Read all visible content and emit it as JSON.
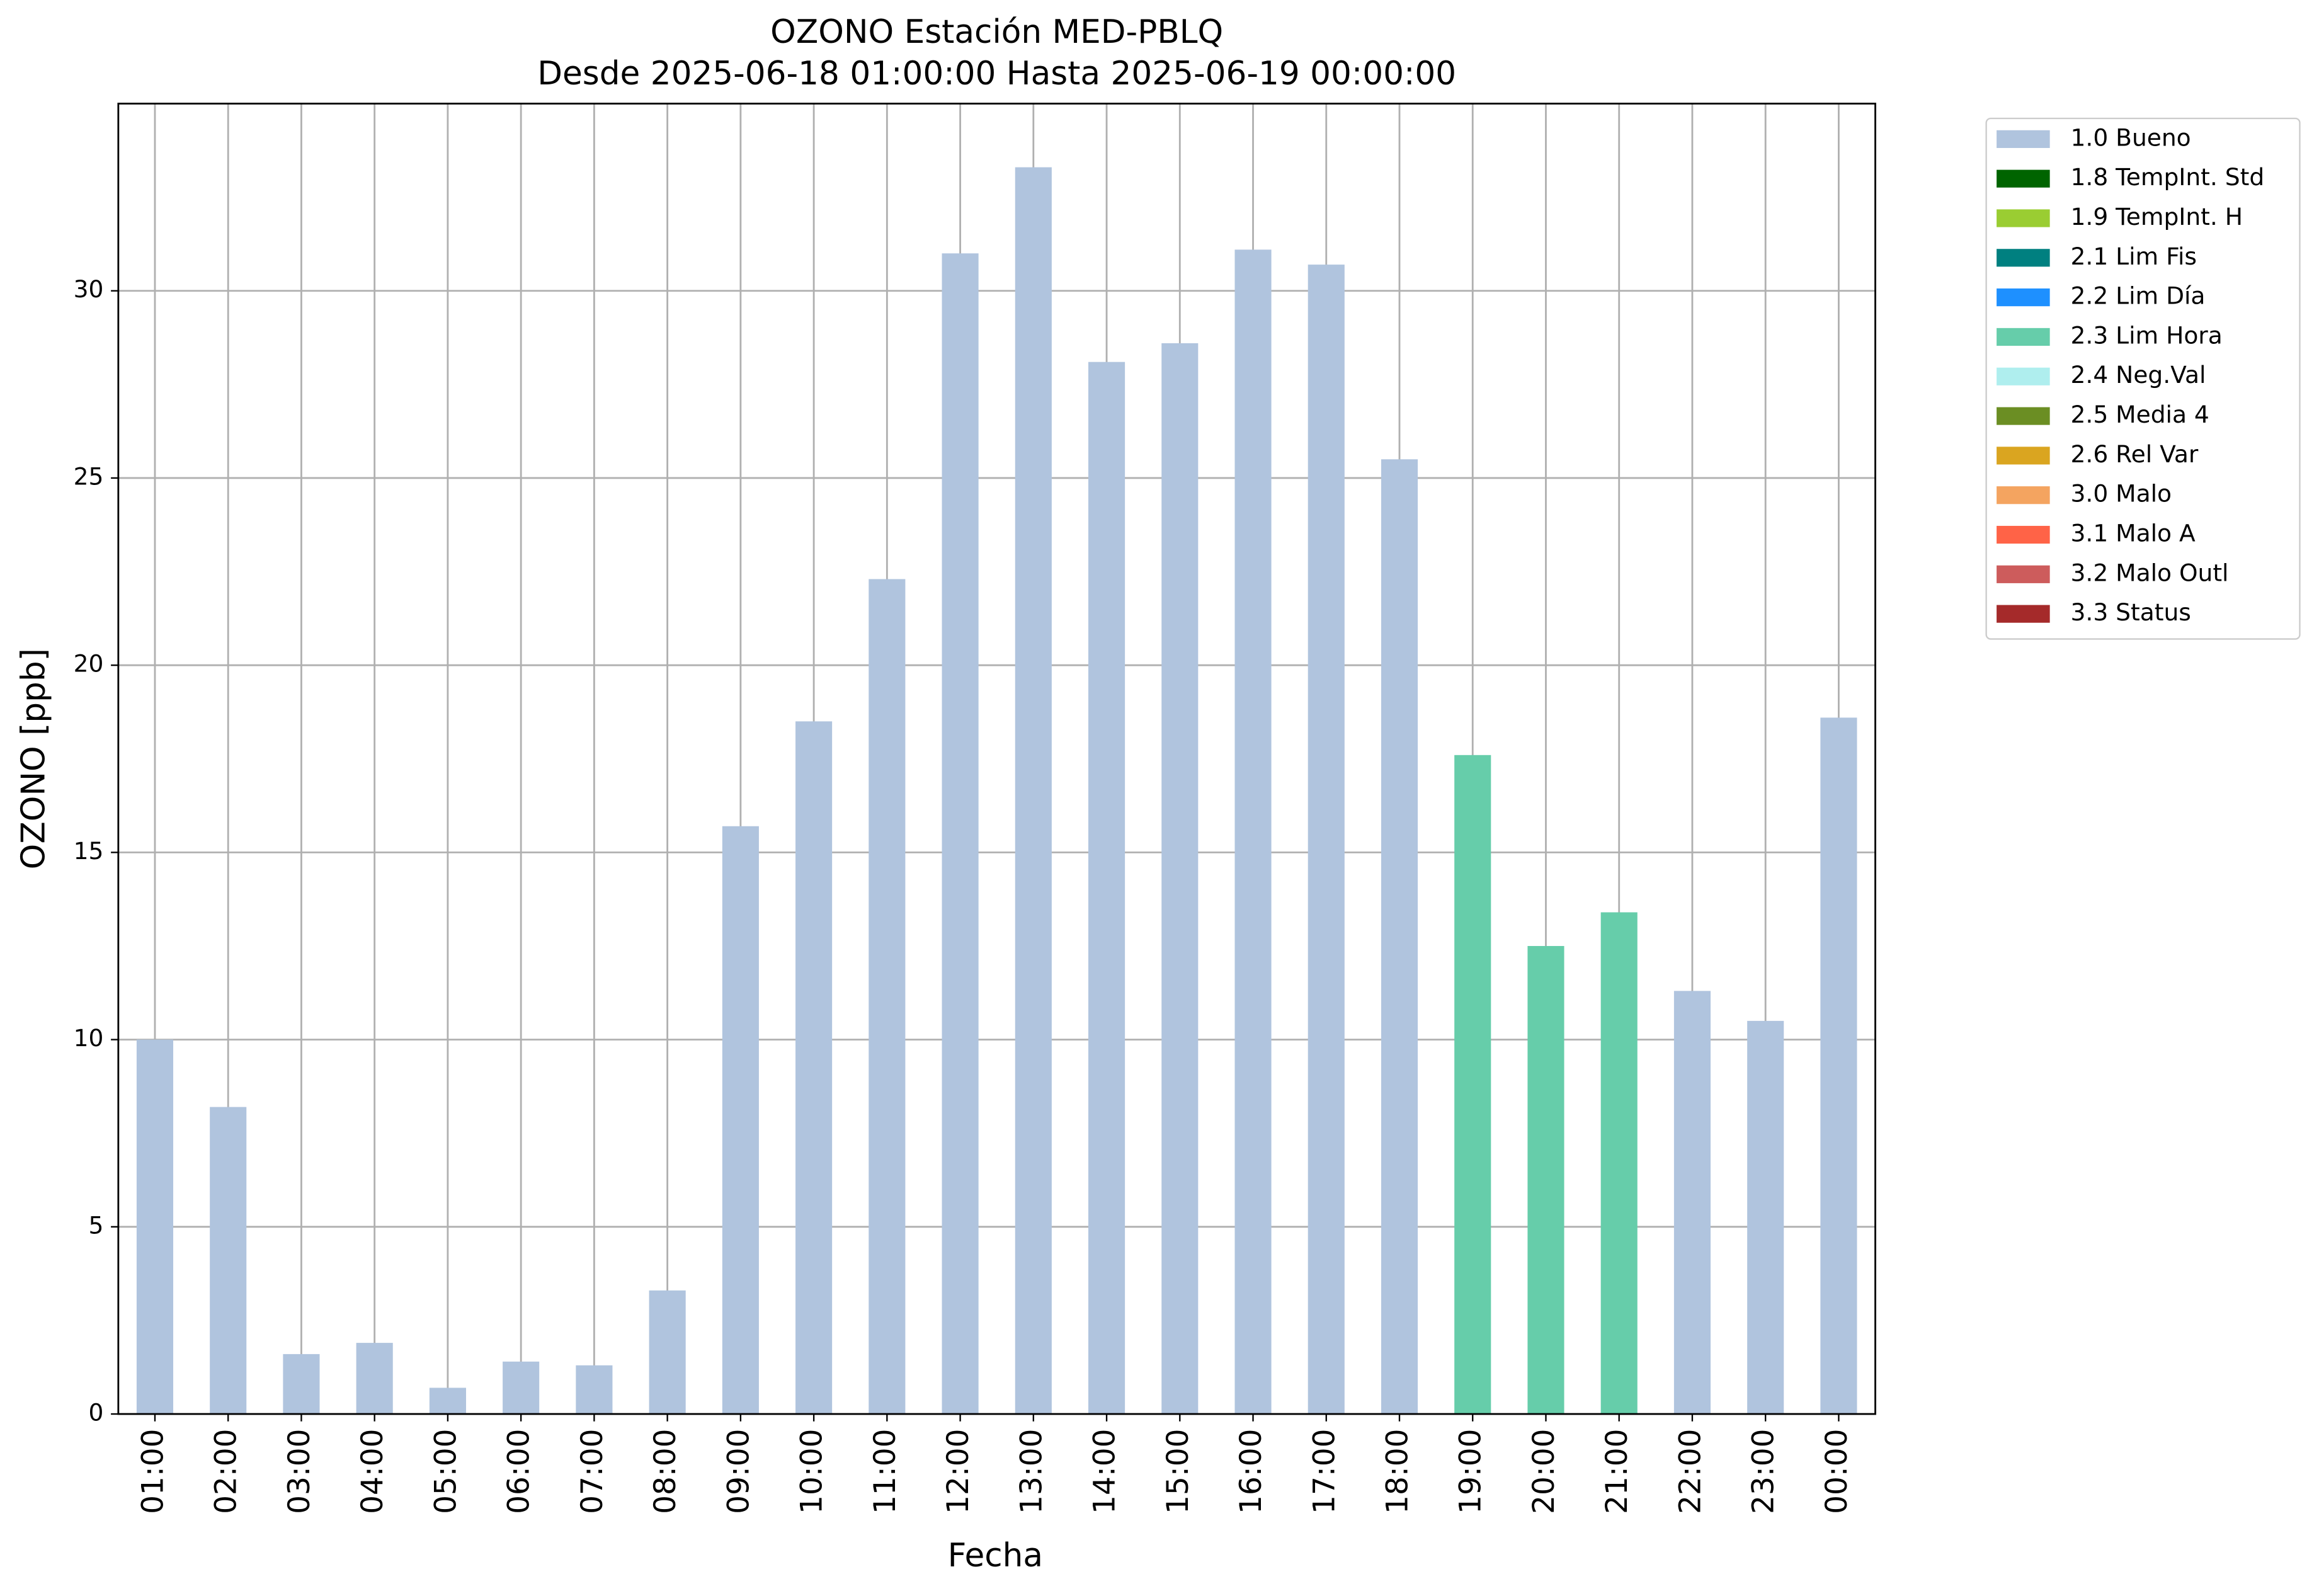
{
  "chart_data": {
    "type": "bar",
    "title": "OZONO Estación MED-PBLQ",
    "subtitle": "Desde 2025-06-18 01:00:00 Hasta 2025-06-19 00:00:00",
    "xlabel": "Fecha",
    "ylabel": "OZONO [ppb]",
    "categories": [
      "01:00",
      "02:00",
      "03:00",
      "04:00",
      "05:00",
      "06:00",
      "07:00",
      "08:00",
      "09:00",
      "10:00",
      "11:00",
      "12:00",
      "13:00",
      "14:00",
      "15:00",
      "16:00",
      "17:00",
      "18:00",
      "19:00",
      "20:00",
      "21:00",
      "22:00",
      "23:00",
      "00:00"
    ],
    "series": [
      {
        "name": "1.0 Bueno",
        "color": "#b0c4de",
        "values": [
          10.0,
          8.2,
          1.6,
          1.9,
          0.7,
          1.4,
          1.3,
          3.3,
          15.7,
          18.5,
          22.3,
          31.0,
          33.3,
          28.1,
          28.6,
          31.1,
          30.7,
          25.5,
          null,
          null,
          null,
          11.3,
          10.5,
          18.6
        ]
      },
      {
        "name": "1.8 TempInt. Std",
        "color": "#006400",
        "values": [
          null,
          null,
          null,
          null,
          null,
          null,
          null,
          null,
          null,
          null,
          null,
          null,
          null,
          null,
          null,
          null,
          null,
          null,
          null,
          null,
          null,
          null,
          null,
          null
        ]
      },
      {
        "name": "1.9 TempInt. H",
        "color": "#9acd32",
        "values": [
          null,
          null,
          null,
          null,
          null,
          null,
          null,
          null,
          null,
          null,
          null,
          null,
          null,
          null,
          null,
          null,
          null,
          null,
          null,
          null,
          null,
          null,
          null,
          null
        ]
      },
      {
        "name": "2.1 Lim Fis",
        "color": "#008080",
        "values": [
          null,
          null,
          null,
          null,
          null,
          null,
          null,
          null,
          null,
          null,
          null,
          null,
          null,
          null,
          null,
          null,
          null,
          null,
          null,
          null,
          null,
          null,
          null,
          null
        ]
      },
      {
        "name": "2.2 Lim Día",
        "color": "#1e90ff",
        "values": [
          null,
          null,
          null,
          null,
          null,
          null,
          null,
          null,
          null,
          null,
          null,
          null,
          null,
          null,
          null,
          null,
          null,
          null,
          null,
          null,
          null,
          null,
          null,
          null
        ]
      },
      {
        "name": "2.3 Lim Hora",
        "color": "#66cdaa",
        "values": [
          null,
          null,
          null,
          null,
          null,
          null,
          null,
          null,
          null,
          null,
          null,
          null,
          null,
          null,
          null,
          null,
          null,
          null,
          17.6,
          12.5,
          13.4,
          null,
          null,
          null
        ]
      },
      {
        "name": "2.4 Neg.Val",
        "color": "#afeeee",
        "values": [
          null,
          null,
          null,
          null,
          null,
          null,
          null,
          null,
          null,
          null,
          null,
          null,
          null,
          null,
          null,
          null,
          null,
          null,
          null,
          null,
          null,
          null,
          null,
          null
        ]
      },
      {
        "name": "2.5 Media 4",
        "color": "#6b8e23",
        "values": [
          null,
          null,
          null,
          null,
          null,
          null,
          null,
          null,
          null,
          null,
          null,
          null,
          null,
          null,
          null,
          null,
          null,
          null,
          null,
          null,
          null,
          null,
          null,
          null
        ]
      },
      {
        "name": "2.6 Rel Var",
        "color": "#daa520",
        "values": [
          null,
          null,
          null,
          null,
          null,
          null,
          null,
          null,
          null,
          null,
          null,
          null,
          null,
          null,
          null,
          null,
          null,
          null,
          null,
          null,
          null,
          null,
          null,
          null
        ]
      },
      {
        "name": "3.0 Malo",
        "color": "#f4a460",
        "values": [
          null,
          null,
          null,
          null,
          null,
          null,
          null,
          null,
          null,
          null,
          null,
          null,
          null,
          null,
          null,
          null,
          null,
          null,
          null,
          null,
          null,
          null,
          null,
          null
        ]
      },
      {
        "name": "3.1 Malo A",
        "color": "#ff6347",
        "values": [
          null,
          null,
          null,
          null,
          null,
          null,
          null,
          null,
          null,
          null,
          null,
          null,
          null,
          null,
          null,
          null,
          null,
          null,
          null,
          null,
          null,
          null,
          null,
          null
        ]
      },
      {
        "name": "3.2 Malo Outl",
        "color": "#cd5c5c",
        "values": [
          null,
          null,
          null,
          null,
          null,
          null,
          null,
          null,
          null,
          null,
          null,
          null,
          null,
          null,
          null,
          null,
          null,
          null,
          null,
          null,
          null,
          null,
          null,
          null
        ]
      },
      {
        "name": "3.3 Status",
        "color": "#a52a2a",
        "values": [
          null,
          null,
          null,
          null,
          null,
          null,
          null,
          null,
          null,
          null,
          null,
          null,
          null,
          null,
          null,
          null,
          null,
          null,
          null,
          null,
          null,
          null,
          null,
          null
        ]
      }
    ],
    "ylim": [
      0,
      35
    ],
    "yticks": [
      0,
      5,
      10,
      15,
      20,
      25,
      30
    ],
    "grid": true,
    "legend": "outside-right"
  }
}
